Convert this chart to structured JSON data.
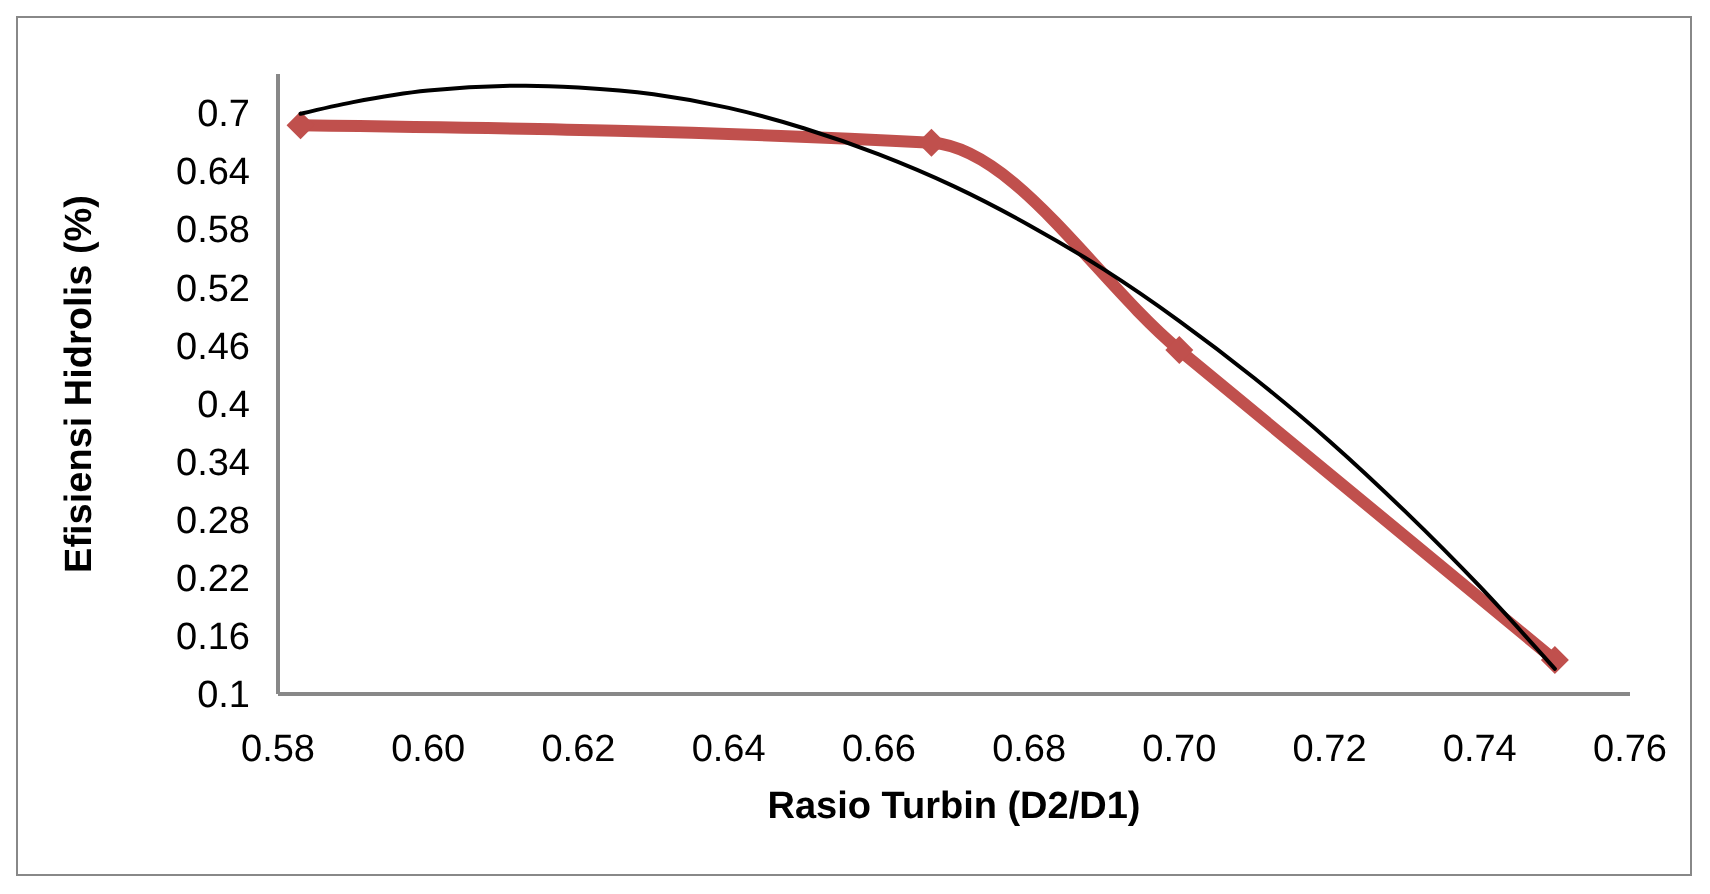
{
  "chart_data": {
    "type": "line",
    "xlabel": "Rasio Turbin (D2/D1)",
    "ylabel": "Efisiensi Hidrolis (%)",
    "xlim": [
      0.58,
      0.76
    ],
    "ylim": [
      0.1,
      0.74
    ],
    "xticks": [
      0.58,
      {
        "value": 0.6,
        "label": "0.60"
      },
      0.62,
      0.64,
      0.66,
      0.68,
      {
        "value": 0.7,
        "label": "0.70"
      },
      0.72,
      0.74,
      0.76
    ],
    "yticks": [
      0.1,
      0.16,
      0.22,
      0.28,
      0.34,
      0.4,
      0.46,
      0.52,
      0.58,
      0.64,
      0.7
    ],
    "grid": false,
    "legend": false,
    "marker": "diamond",
    "line_style": "solid",
    "series": [
      {
        "color": "#c0504d",
        "x": [
          0.583,
          0.667,
          0.7,
          0.75
        ],
        "values": [
          0.687,
          0.669,
          0.455,
          0.135
        ]
      },
      {
        "type": "line",
        "color": "#000000",
        "marker": "none",
        "x": [
          0.583,
          0.59,
          0.6,
          0.613,
          0.62,
          0.63,
          0.64,
          0.65,
          0.66,
          0.67,
          0.68,
          0.69,
          0.7,
          0.71,
          0.72,
          0.73,
          0.74,
          0.75
        ],
        "values": [
          0.699,
          0.711,
          0.723,
          0.728,
          0.726,
          0.719,
          0.705,
          0.684,
          0.657,
          0.624,
          0.584,
          0.538,
          0.485,
          0.426,
          0.361,
          0.289,
          0.211,
          0.126
        ]
      }
    ]
  }
}
